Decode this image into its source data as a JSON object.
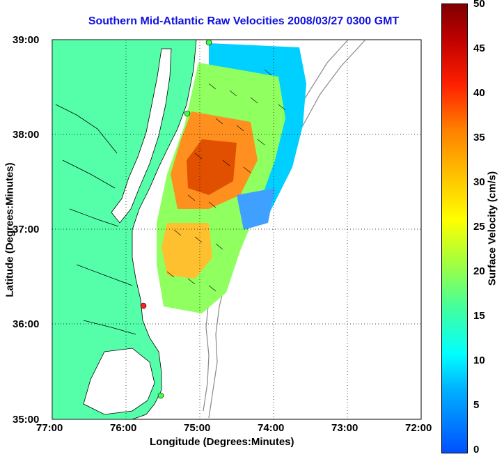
{
  "title": "Southern Mid-Atlantic Raw Velocities 2008/03/27 0300 GMT",
  "xlabel": "Longitude (Degrees:Minutes)",
  "ylabel": "Latitude (Degrees:Minutes)",
  "colorbar_label": "Surface Velocity (cm/s)",
  "xticks": [
    "77:00",
    "76:00",
    "75:00",
    "74:00",
    "73:00",
    "72:00"
  ],
  "yticks": [
    "39:00",
    "38:00",
    "37:00",
    "36:00",
    "35:00"
  ],
  "colorbar_ticks": [
    "50",
    "45",
    "40",
    "35",
    "30",
    "25",
    "20",
    "15",
    "10",
    "5",
    "0"
  ],
  "colors": {
    "land": "#55ffaa",
    "title": "#1010e0",
    "coast": "#000000",
    "bathymetry": "#888888"
  },
  "stations": [
    {
      "name": "north-station",
      "status": "green"
    },
    {
      "name": "delmarva-station",
      "status": "green"
    },
    {
      "name": "outer-banks-north-station",
      "status": "red"
    },
    {
      "name": "hatteras-station",
      "status": "green"
    }
  ]
}
